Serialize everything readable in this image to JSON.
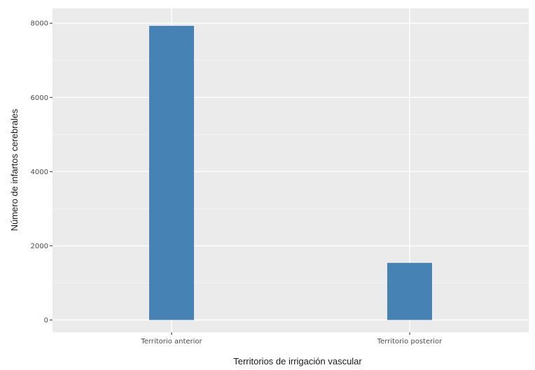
{
  "chart_data": {
    "type": "bar",
    "categories": [
      "Territorio anterior",
      "Territorio posterior"
    ],
    "values": [
      7930,
      1540
    ],
    "xlabel": "Territorios de irrigación vascular",
    "ylabel": "Número de infartos cerebrales",
    "ylim": [
      -330,
      8400
    ],
    "yticks": [
      0,
      2000,
      4000,
      6000,
      8000
    ],
    "ytick_labels": [
      "0",
      "2000",
      "4000",
      "6000",
      "8000"
    ],
    "grid": true,
    "colors": {
      "bar": "#4682b4",
      "panel_background": "#ebebeb",
      "grid_major": "#ffffff",
      "grid_minor": "#f5f5f5",
      "tick": "#333333"
    }
  }
}
